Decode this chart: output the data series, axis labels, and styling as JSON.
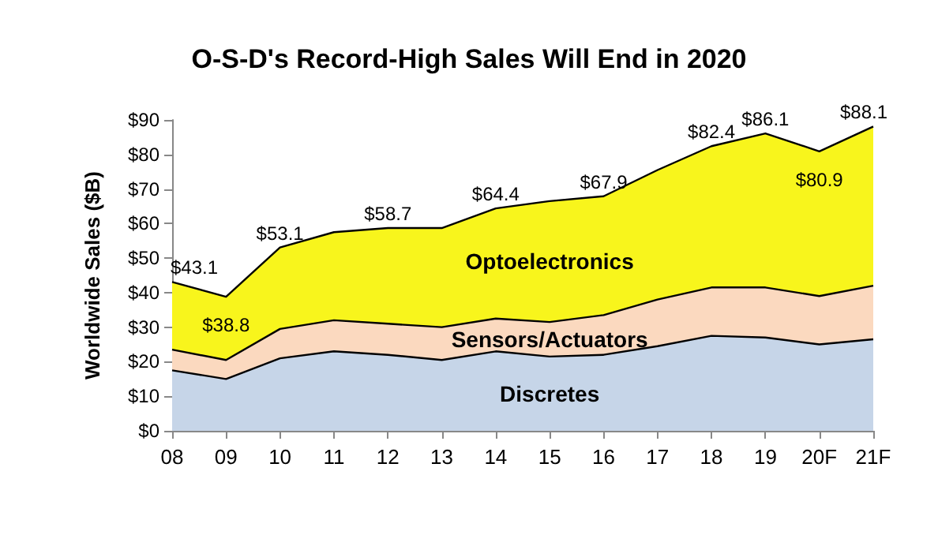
{
  "chart_data": {
    "type": "area",
    "stacked": true,
    "title": "O-S-D's Record-High Sales Will End in 2020",
    "ylabel": "Worldwide Sales ($B)",
    "categories": [
      "08",
      "09",
      "10",
      "11",
      "12",
      "13",
      "14",
      "15",
      "16",
      "17",
      "18",
      "19",
      "20F",
      "21F"
    ],
    "series": [
      {
        "name": "Discretes",
        "color": "#c6d5e8",
        "values": [
          17.5,
          15,
          21,
          23,
          22,
          20.5,
          23,
          21.5,
          22,
          24.5,
          27.5,
          27,
          25,
          26.5
        ]
      },
      {
        "name": "Sensors/Actuators",
        "color": "#fbd9bf",
        "values": [
          6,
          5.5,
          8.5,
          9,
          9,
          9.5,
          9.5,
          10,
          11.5,
          13.5,
          14,
          14.5,
          14,
          15.5
        ]
      },
      {
        "name": "Optoelectronics",
        "color": "#f8f51c",
        "values": [
          19.6,
          18.3,
          23.6,
          25.5,
          27.7,
          28.7,
          31.9,
          35,
          34.4,
          37.5,
          40.9,
          44.6,
          41.9,
          46.1
        ]
      }
    ],
    "totals": [
      "$43.1",
      "$38.8",
      "$53.1",
      null,
      "$58.7",
      null,
      "$64.4",
      null,
      "$67.9",
      null,
      "$82.4",
      "$86.1",
      "$80.9",
      "$88.1"
    ],
    "ylim": [
      0,
      90
    ],
    "yticks": [
      {
        "value": 0,
        "label": "$0"
      },
      {
        "value": 10,
        "label": "$10"
      },
      {
        "value": 20,
        "label": "$20"
      },
      {
        "value": 30,
        "label": "$30"
      },
      {
        "value": 40,
        "label": "$40"
      },
      {
        "value": 50,
        "label": "$50"
      },
      {
        "value": 60,
        "label": "$60"
      },
      {
        "value": 70,
        "label": "$70"
      },
      {
        "value": 80,
        "label": "$80"
      },
      {
        "value": 90,
        "label": "$90"
      }
    ],
    "grid": false,
    "legend": false,
    "marker": "none",
    "line_style": "solid"
  }
}
